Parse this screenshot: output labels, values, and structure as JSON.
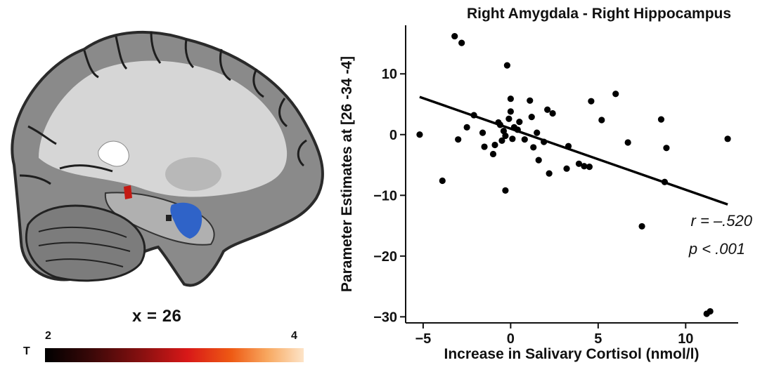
{
  "brain": {
    "slice_label": "x = 26",
    "colorbar": {
      "label": "T",
      "min": "2",
      "max": "4"
    }
  },
  "chart_data": {
    "type": "scatter",
    "title": "Right Amygdala - Right Hippocampus",
    "xlabel": "Increase in Salivary Cortisol (nmol/l)",
    "ylabel": "Parameter Estimates at [26 -34 -4]",
    "xlim": [
      -6,
      13
    ],
    "ylim": [
      -31,
      18
    ],
    "xticks": [
      -5,
      0,
      5,
      10
    ],
    "yticks": [
      10,
      0,
      -10,
      -20,
      -30
    ],
    "grid": false,
    "annotation": {
      "r": "r = –.520",
      "p": "p < .001"
    },
    "regression_line": {
      "x": [
        -5.2,
        12.4
      ],
      "y": [
        6.2,
        -11.5
      ]
    },
    "points": [
      [
        -5.2,
        0.0
      ],
      [
        -3.9,
        -7.6
      ],
      [
        -3.2,
        16.2
      ],
      [
        -2.8,
        15.1
      ],
      [
        -3.0,
        -0.8
      ],
      [
        -2.5,
        1.2
      ],
      [
        -2.1,
        3.2
      ],
      [
        -1.6,
        0.3
      ],
      [
        -1.5,
        -2.0
      ],
      [
        -1.0,
        -3.2
      ],
      [
        -0.9,
        -1.7
      ],
      [
        -0.7,
        2.0
      ],
      [
        -0.6,
        1.6
      ],
      [
        -0.5,
        -1.0
      ],
      [
        -0.4,
        0.6
      ],
      [
        -0.3,
        -0.2
      ],
      [
        -0.3,
        -9.2
      ],
      [
        -0.2,
        11.4
      ],
      [
        -0.1,
        2.6
      ],
      [
        0.0,
        5.9
      ],
      [
        0.0,
        3.8
      ],
      [
        0.1,
        -0.7
      ],
      [
        0.2,
        1.2
      ],
      [
        0.4,
        0.8
      ],
      [
        0.5,
        2.1
      ],
      [
        0.8,
        -0.8
      ],
      [
        1.1,
        5.6
      ],
      [
        1.2,
        2.9
      ],
      [
        1.3,
        -2.1
      ],
      [
        1.5,
        0.3
      ],
      [
        1.6,
        -4.2
      ],
      [
        1.9,
        -1.2
      ],
      [
        2.1,
        4.1
      ],
      [
        2.4,
        3.5
      ],
      [
        2.2,
        -6.4
      ],
      [
        3.2,
        -5.6
      ],
      [
        3.3,
        -1.9
      ],
      [
        3.9,
        -4.8
      ],
      [
        4.2,
        -5.2
      ],
      [
        4.5,
        -5.3
      ],
      [
        4.6,
        5.5
      ],
      [
        5.2,
        2.4
      ],
      [
        6.0,
        6.7
      ],
      [
        6.7,
        -1.3
      ],
      [
        7.5,
        -15.1
      ],
      [
        8.6,
        2.5
      ],
      [
        8.8,
        -7.8
      ],
      [
        8.9,
        -2.2
      ],
      [
        11.2,
        -29.5
      ],
      [
        11.4,
        -29.1
      ],
      [
        12.4,
        -0.7
      ]
    ]
  }
}
